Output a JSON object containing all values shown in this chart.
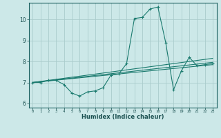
{
  "title": "",
  "xlabel": "Humidex (Indice chaleur)",
  "ylabel": "",
  "background_color": "#cce8e8",
  "grid_color": "#aacccc",
  "line_color": "#1a7a6e",
  "xlim": [
    -0.5,
    23.5
  ],
  "ylim": [
    5.8,
    10.8
  ],
  "yticks": [
    6,
    7,
    8,
    9,
    10
  ],
  "xticks": [
    0,
    1,
    2,
    3,
    4,
    5,
    6,
    7,
    8,
    9,
    10,
    11,
    12,
    13,
    14,
    15,
    16,
    17,
    18,
    19,
    20,
    21,
    22,
    23
  ],
  "series_main": [
    7.0,
    7.0,
    7.1,
    7.1,
    6.9,
    6.5,
    6.35,
    6.55,
    6.6,
    6.75,
    7.35,
    7.4,
    7.9,
    10.05,
    10.1,
    10.5,
    10.6,
    8.9,
    6.65,
    7.55,
    8.2,
    7.8,
    7.85,
    7.9
  ],
  "series_trend1": [
    [
      0,
      7.0
    ],
    [
      23,
      7.96
    ]
  ],
  "series_trend2": [
    [
      0,
      7.0
    ],
    [
      23,
      7.85
    ]
  ],
  "series_trend3": [
    [
      0,
      7.0
    ],
    [
      23,
      8.15
    ]
  ]
}
